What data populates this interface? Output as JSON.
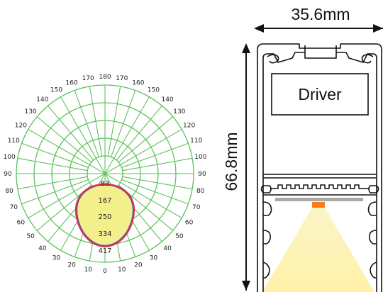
{
  "polar": {
    "angle_labels": [
      "180",
      "170",
      "160",
      "150",
      "140",
      "130",
      "120",
      "110",
      "100",
      "90",
      "80",
      "70",
      "60",
      "50",
      "40",
      "30",
      "20",
      "10",
      "0"
    ],
    "values": [
      "83",
      "167",
      "250",
      "334",
      "417"
    ],
    "grid_color": "#5cc25c",
    "curve_colors": {
      "c0": "#e0324a",
      "c90": "#3b53c4",
      "fill": "#f3f08c"
    }
  },
  "profile": {
    "width_label": "35.6mm",
    "height_label": "66.8mm",
    "driver_label": "Driver",
    "led_color": "#ff7a1a"
  }
}
